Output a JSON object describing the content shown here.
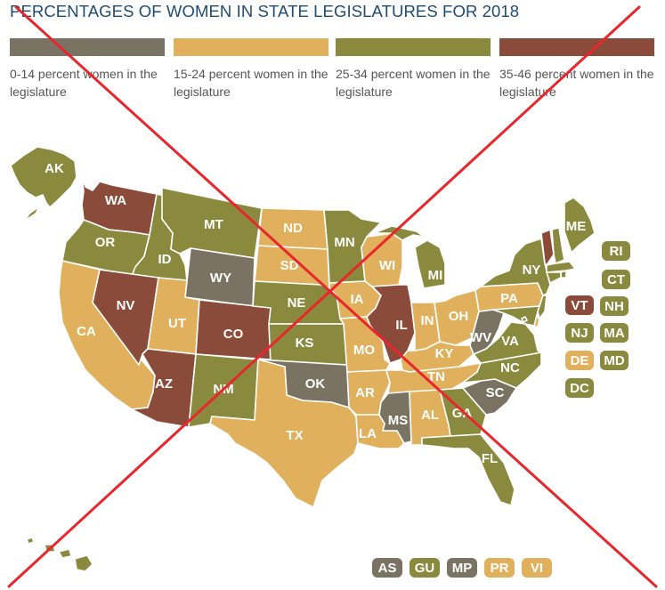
{
  "title": "PERCENTAGES OF WOMEN IN STATE LEGISLATURES FOR 2018",
  "colors": {
    "grey": "#7a7263",
    "yellow": "#e0b05c",
    "olive": "#8a8a3f",
    "brown": "#8a4b3a",
    "cross": "#e8262c"
  },
  "legend": [
    {
      "label": "0-14 percent women in the legislature",
      "color_key": "grey"
    },
    {
      "label": "15-24 percent women in the legislature",
      "color_key": "yellow"
    },
    {
      "label": "25-34 percent women in the legislature",
      "color_key": "olive"
    },
    {
      "label": "35-46 percent women in the legislature",
      "color_key": "brown"
    }
  ],
  "states": {
    "AK": {
      "label": "AK",
      "category": "olive"
    },
    "HI": {
      "label": "HI",
      "category": "olive"
    },
    "WA": {
      "label": "WA",
      "category": "brown"
    },
    "OR": {
      "label": "OR",
      "category": "olive"
    },
    "CA": {
      "label": "CA",
      "category": "yellow"
    },
    "ID": {
      "label": "ID",
      "category": "olive"
    },
    "NV": {
      "label": "NV",
      "category": "brown"
    },
    "MT": {
      "label": "MT",
      "category": "olive"
    },
    "WY": {
      "label": "WY",
      "category": "grey"
    },
    "UT": {
      "label": "UT",
      "category": "yellow"
    },
    "AZ": {
      "label": "AZ",
      "category": "brown"
    },
    "CO": {
      "label": "CO",
      "category": "brown"
    },
    "NM": {
      "label": "NM",
      "category": "olive"
    },
    "ND": {
      "label": "ND",
      "category": "yellow"
    },
    "SD": {
      "label": "SD",
      "category": "yellow"
    },
    "NE": {
      "label": "NE",
      "category": "olive"
    },
    "KS": {
      "label": "KS",
      "category": "olive"
    },
    "OK": {
      "label": "OK",
      "category": "grey"
    },
    "TX": {
      "label": "TX",
      "category": "yellow"
    },
    "MN": {
      "label": "MN",
      "category": "olive"
    },
    "IA": {
      "label": "IA",
      "category": "yellow"
    },
    "MO": {
      "label": "MO",
      "category": "yellow"
    },
    "AR": {
      "label": "AR",
      "category": "yellow"
    },
    "LA": {
      "label": "LA",
      "category": "yellow"
    },
    "WI": {
      "label": "WI",
      "category": "yellow"
    },
    "IL": {
      "label": "IL",
      "category": "brown"
    },
    "MI": {
      "label": "MI",
      "category": "olive"
    },
    "IN": {
      "label": "IN",
      "category": "yellow"
    },
    "OH": {
      "label": "OH",
      "category": "yellow"
    },
    "KY": {
      "label": "KY",
      "category": "yellow"
    },
    "TN": {
      "label": "TN",
      "category": "yellow"
    },
    "MS": {
      "label": "MS",
      "category": "grey"
    },
    "AL": {
      "label": "AL",
      "category": "yellow"
    },
    "GA": {
      "label": "GA",
      "category": "olive"
    },
    "FL": {
      "label": "FL",
      "category": "olive"
    },
    "SC": {
      "label": "SC",
      "category": "grey"
    },
    "NC": {
      "label": "NC",
      "category": "olive"
    },
    "VA": {
      "label": "VA",
      "category": "olive"
    },
    "WV": {
      "label": "WV",
      "category": "grey"
    },
    "PA": {
      "label": "PA",
      "category": "yellow"
    },
    "NY": {
      "label": "NY",
      "category": "olive"
    },
    "ME": {
      "label": "ME",
      "category": "olive"
    },
    "VT": {
      "label": "VT",
      "category": "brown"
    },
    "NH": {
      "label": "NH",
      "category": "olive"
    },
    "MA": {
      "label": "MA",
      "category": "olive"
    },
    "RI": {
      "label": "RI",
      "category": "olive"
    },
    "CT": {
      "label": "CT",
      "category": "olive"
    },
    "NJ": {
      "label": "NJ",
      "category": "olive"
    },
    "DE": {
      "label": "DE",
      "category": "yellow"
    },
    "MD": {
      "label": "MD",
      "category": "olive"
    },
    "DC": {
      "label": "DC",
      "category": "olive"
    }
  },
  "territories": {
    "AS": {
      "label": "AS",
      "category": "grey"
    },
    "GU": {
      "label": "GU",
      "category": "olive"
    },
    "MP": {
      "label": "MP",
      "category": "grey"
    },
    "PR": {
      "label": "PR",
      "category": "yellow"
    },
    "VI": {
      "label": "VI",
      "category": "yellow"
    }
  }
}
